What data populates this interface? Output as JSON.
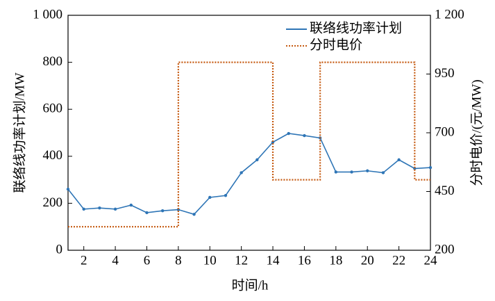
{
  "chart_data": {
    "type": "line",
    "xlabel": "时间/h",
    "ylabel": "联络线功率计划/MW",
    "y2label": "分时电价/(元/MW)",
    "xlim": [
      1,
      24
    ],
    "xticks": [
      2,
      4,
      6,
      8,
      10,
      12,
      14,
      16,
      18,
      20,
      22,
      24
    ],
    "ylim": [
      0,
      1000
    ],
    "yticks": [
      0,
      200,
      400,
      600,
      800,
      {
        "value": 1000,
        "label": "1 000"
      }
    ],
    "y2lim": [
      200,
      1200
    ],
    "y2ticks": [
      200,
      450,
      700,
      950,
      {
        "value": 1200,
        "label": "1 200"
      }
    ],
    "legend": "upper right",
    "series": [
      {
        "name": "联络线功率计划",
        "color": "#2e75b6",
        "style": "solid",
        "marker": true,
        "x": [
          1,
          2,
          3,
          4,
          5,
          6,
          7,
          8,
          9,
          10,
          11,
          12,
          13,
          14,
          15,
          16,
          17,
          18,
          19,
          20,
          21,
          22,
          23,
          24
        ],
        "values": [
          260,
          175,
          180,
          175,
          192,
          160,
          168,
          173,
          153,
          225,
          233,
          330,
          385,
          460,
          497,
          488,
          478,
          333,
          333,
          338,
          330,
          385,
          348,
          352
        ]
      },
      {
        "name": "分时电价",
        "color": "#c55a11",
        "style": "dotted",
        "marker": false,
        "axis": "y2",
        "x": [
          1,
          8,
          8,
          14,
          14,
          17,
          17,
          23,
          23,
          24
        ],
        "values": [
          300,
          300,
          1000,
          1000,
          500,
          500,
          1000,
          1000,
          500,
          500
        ]
      }
    ]
  }
}
